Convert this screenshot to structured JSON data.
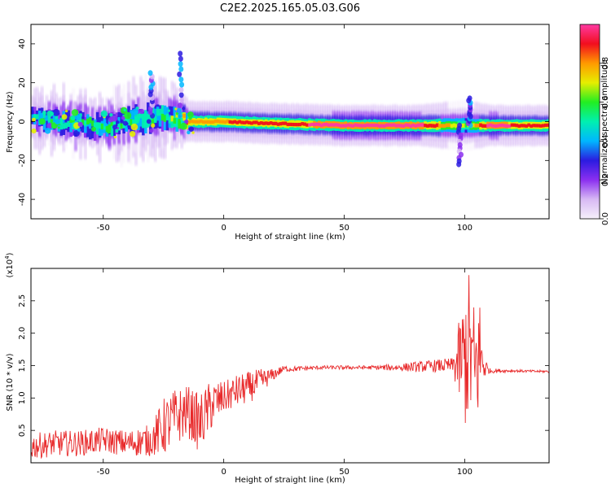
{
  "title": "C2E2.2025.165.05.03.G06",
  "colors": {
    "snr_line": "#e8292a",
    "colormap": [
      "#f6f0fb",
      "#d7b9f4",
      "#8b2ff0",
      "#2b1be0",
      "#00b7ff",
      "#00f0b0",
      "#22ee22",
      "#e6ee00",
      "#ff9a00",
      "#f20e1e",
      "#ff3aa3"
    ]
  },
  "chart_data": [
    {
      "type": "heatmap",
      "xlabel": "Height of straight line (km)",
      "ylabel": "Frequency (Hz)",
      "xlim": [
        -80,
        135
      ],
      "ylim": [
        -50,
        50
      ],
      "xticks": [
        -50,
        0,
        50,
        100
      ],
      "yticks": [
        -40,
        -20,
        0,
        20,
        40
      ],
      "colorbar": {
        "label": "Normalized spectral amplitude",
        "range": [
          0,
          1
        ],
        "ticks": [
          "0.0",
          "0.2",
          "0.4",
          "0.6",
          "0.8"
        ]
      },
      "ridge": {
        "description_points": [
          {
            "x": -80,
            "f": 1,
            "width": 6,
            "amp": 0.45
          },
          {
            "x": -65,
            "f": 0,
            "width": 7,
            "amp": 0.5
          },
          {
            "x": -50,
            "f": -3,
            "width": 7,
            "amp": 0.5
          },
          {
            "x": -40,
            "f": 0,
            "width": 8,
            "amp": 0.5
          },
          {
            "x": -25,
            "f": 3,
            "width": 8,
            "amp": 0.5
          },
          {
            "x": -15,
            "f": 0,
            "width": 4,
            "amp": 0.8
          },
          {
            "x": 0,
            "f": 0,
            "width": 4,
            "amp": 0.8
          },
          {
            "x": 20,
            "f": -1,
            "width": 4,
            "amp": 0.85
          },
          {
            "x": 50,
            "f": -2,
            "width": 4,
            "amp": 0.95
          },
          {
            "x": 80,
            "f": -2,
            "width": 4,
            "amp": 0.95
          },
          {
            "x": 100,
            "f": -2,
            "width": 5,
            "amp": 0.6
          },
          {
            "x": 110,
            "f": -2,
            "width": 4,
            "amp": 0.95
          },
          {
            "x": 135,
            "f": -2,
            "width": 4,
            "amp": 0.8
          }
        ],
        "spikes": [
          {
            "x": 102,
            "f_from": -2,
            "f_to": 12
          },
          {
            "x": 98,
            "f_from": -2,
            "f_to": -22
          },
          {
            "x": -30,
            "f_from": 3,
            "f_to": 25
          },
          {
            "x": -18,
            "f_from": 3,
            "f_to": 35
          }
        ]
      }
    },
    {
      "type": "line",
      "xlabel": "Height of straight line (km)",
      "ylabel": "SNR (10 * v/v)",
      "yunit": "(x10^4)",
      "xlim": [
        -80,
        135
      ],
      "ylim": [
        0,
        3
      ],
      "xticks": [
        -50,
        0,
        50,
        100
      ],
      "yticks": [
        0.5,
        1.0,
        1.5,
        2.0,
        2.5
      ],
      "series": [
        {
          "x": [
            -80,
            -70,
            -60,
            -50,
            -40,
            -30,
            -25,
            -20,
            -15,
            -10,
            -5,
            0,
            5,
            10,
            15,
            20,
            25,
            30,
            40,
            50,
            60,
            70,
            80,
            90,
            95,
            100,
            102,
            104,
            106,
            108,
            110,
            120,
            130,
            135
          ],
          "values": [
            0.25,
            0.3,
            0.3,
            0.35,
            0.3,
            0.35,
            0.55,
            0.7,
            0.8,
            0.6,
            0.9,
            1.0,
            1.1,
            1.15,
            1.25,
            1.35,
            1.45,
            1.45,
            1.47,
            1.47,
            1.47,
            1.47,
            1.48,
            1.5,
            1.5,
            1.6,
            1.8,
            1.3,
            1.7,
            1.5,
            1.42,
            1.42,
            1.41,
            1.41
          ],
          "noise": [
            0.2,
            0.2,
            0.2,
            0.2,
            0.2,
            0.25,
            0.45,
            0.45,
            0.4,
            0.45,
            0.4,
            0.25,
            0.25,
            0.25,
            0.2,
            0.1,
            0.05,
            0.04,
            0.03,
            0.03,
            0.03,
            0.05,
            0.08,
            0.1,
            0.12,
            1.1,
            1.2,
            1.2,
            1.0,
            0.25,
            0.04,
            0.02,
            0.02,
            0.02
          ]
        }
      ]
    }
  ]
}
